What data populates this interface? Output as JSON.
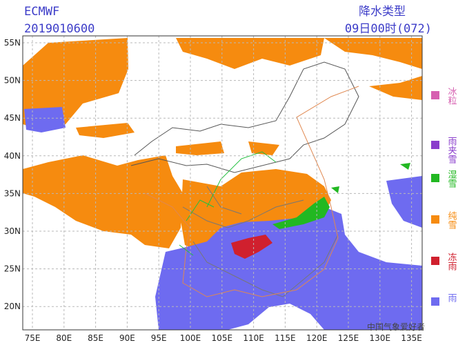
{
  "header": {
    "model": "ECMWF",
    "init": "2019010600",
    "product": "降水类型",
    "valid": "09日00时(072)"
  },
  "axes": {
    "lat": [
      "55N",
      "50N",
      "45N",
      "40N",
      "35N",
      "30N",
      "25N",
      "20N"
    ],
    "lon": [
      "75E",
      "80E",
      "85E",
      "90E",
      "95E",
      "100E",
      "105E",
      "110E",
      "115E",
      "120E",
      "125E",
      "130E",
      "135E"
    ]
  },
  "legend": [
    "冰粒",
    "雨夹雪",
    "湿雪",
    "纯雪",
    "冻雨",
    "雨"
  ],
  "watermark": "中国气象爱好者"
}
